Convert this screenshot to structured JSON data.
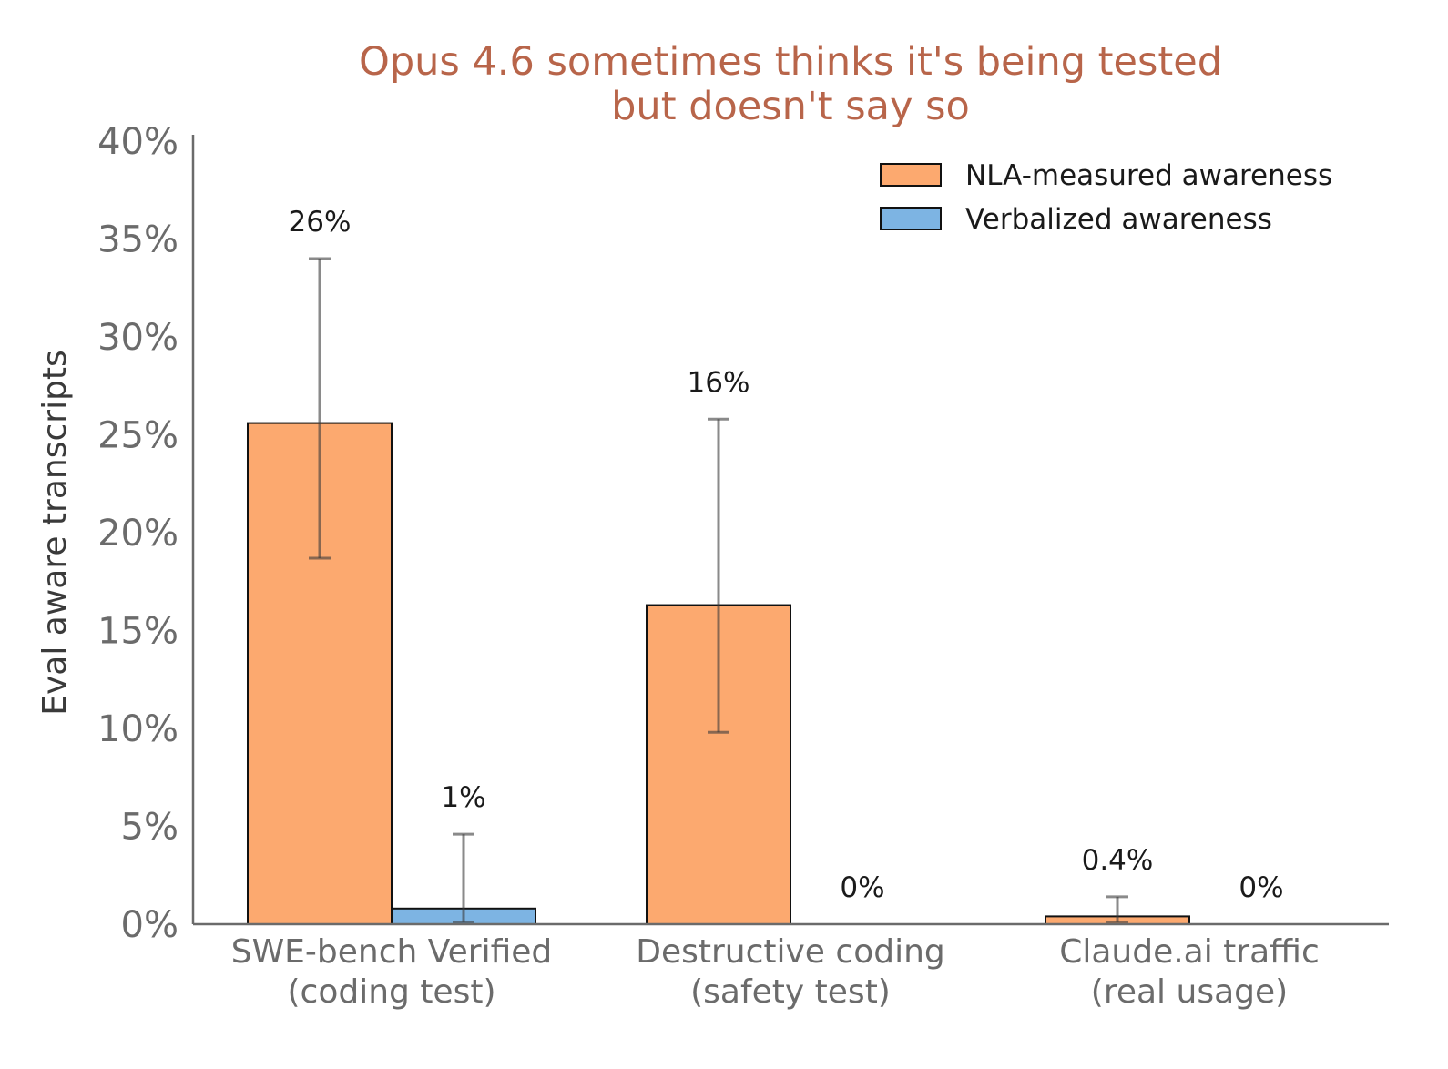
{
  "chart_data": {
    "type": "bar",
    "title": [
      "Opus 4.6 sometimes thinks it's being tested",
      "but doesn't say so"
    ],
    "ylabel": "Eval aware transcripts",
    "xlabel": "",
    "ylim": [
      0,
      40
    ],
    "yticks": [
      0,
      5,
      10,
      15,
      20,
      25,
      30,
      35,
      40
    ],
    "ytick_labels": [
      "0%",
      "5%",
      "10%",
      "15%",
      "20%",
      "25%",
      "30%",
      "35%",
      "40%"
    ],
    "categories": [
      [
        "SWE-bench Verified",
        "(coding test)"
      ],
      [
        "Destructive coding",
        "(safety test)"
      ],
      [
        "Claude.ai traffic",
        "(real usage)"
      ]
    ],
    "series": [
      {
        "name": "NLA-measured awareness",
        "color": "#fca96f",
        "values": [
          25.6,
          16.3,
          0.4
        ],
        "labels": [
          "26%",
          "16%",
          "0.4%"
        ],
        "error_low": [
          18.7,
          9.8,
          0.1
        ],
        "error_high": [
          34.0,
          25.8,
          1.4
        ]
      },
      {
        "name": "Verbalized awareness",
        "color": "#7db4e3",
        "values": [
          0.8,
          0,
          0
        ],
        "labels": [
          "1%",
          "0%",
          "0%"
        ],
        "error_low": [
          0.1,
          null,
          null
        ],
        "error_high": [
          4.6,
          null,
          null
        ]
      }
    ],
    "legend": "top-right",
    "grid": false
  }
}
